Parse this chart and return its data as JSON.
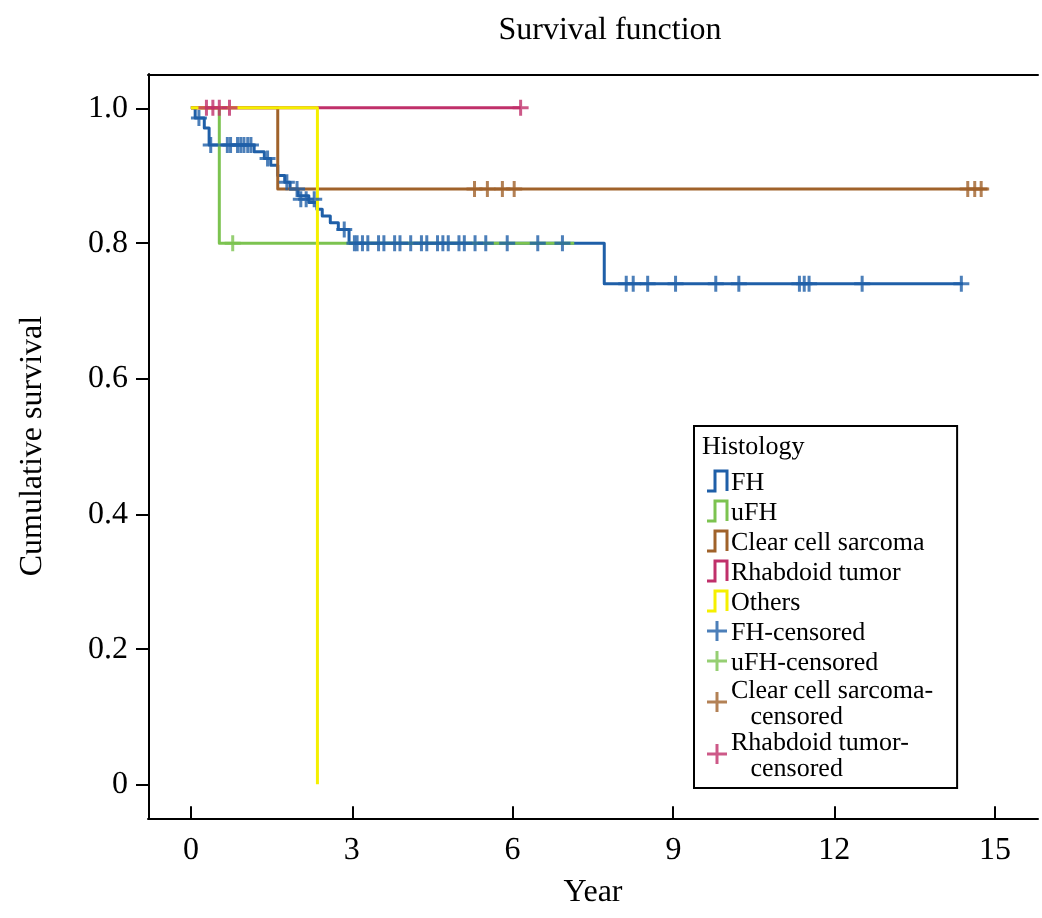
{
  "chart_data": {
    "type": "step",
    "title": "Survival function",
    "xlabel": "Year",
    "ylabel": "Cumulative survival",
    "legend_title": "Histology",
    "legend": "bottom right",
    "grid": false,
    "xlim": [
      -0.8,
      15.8
    ],
    "xticks": [
      0,
      3,
      6,
      9,
      12,
      15
    ],
    "ylim": [
      -0.05,
      1.05
    ],
    "yticks": [
      {
        "value": 0,
        "label": "0"
      },
      {
        "value": 0.2,
        "label": "0.2"
      },
      {
        "value": 0.4,
        "label": "0.4"
      },
      {
        "value": 0.6,
        "label": "0.6"
      },
      {
        "value": 0.8,
        "label": "0.8"
      },
      {
        "value": 1,
        "label": "1.0"
      }
    ],
    "series": [
      {
        "name": "FH",
        "type": "step",
        "color": "#1f5fa8",
        "x": [
          0,
          0.08,
          0.25,
          0.34,
          1.18,
          1.37,
          1.49,
          1.62,
          1.75,
          1.85,
          2.0,
          2.2,
          2.35,
          2.45,
          2.6,
          2.75,
          2.95,
          7.71,
          14.4
        ],
        "values": [
          1,
          0.985,
          0.97,
          0.945,
          0.935,
          0.925,
          0.915,
          0.9,
          0.89,
          0.88,
          0.87,
          0.86,
          0.85,
          0.84,
          0.83,
          0.82,
          0.8,
          0.74,
          0.74
        ]
      },
      {
        "name": "uFH",
        "type": "step",
        "color": "#7cc350",
        "x": [
          0,
          0.53,
          7.15
        ],
        "values": [
          1,
          0.8,
          0.8
        ]
      },
      {
        "name": "Clear cell sarcoma",
        "type": "step",
        "color": "#a0622a",
        "x": [
          0,
          1.62,
          14.86
        ],
        "values": [
          1,
          0.88,
          0.88
        ]
      },
      {
        "name": "Rhabdoid tumor",
        "type": "step",
        "color": "#c0306a",
        "x": [
          0,
          6.15
        ],
        "values": [
          1,
          1
        ]
      },
      {
        "name": "Others",
        "type": "step",
        "color": "#f5f000",
        "x": [
          0,
          2.36,
          2.36
        ],
        "values": [
          1,
          0,
          0
        ]
      },
      {
        "name": "FH-censored",
        "type": "scatter",
        "marker": "cross",
        "color": "#1f5fa8",
        "x": [
          0.15,
          0.37,
          0.68,
          0.74,
          0.87,
          0.93,
          0.99,
          1.06,
          1.12,
          1.43,
          1.79,
          1.98,
          2.05,
          2.15,
          2.3,
          2.86,
          3.05,
          3.1,
          3.2,
          3.3,
          3.5,
          3.6,
          3.8,
          3.9,
          4.1,
          4.3,
          4.4,
          4.6,
          4.7,
          4.8,
          5.0,
          5.1,
          5.3,
          5.5,
          5.9,
          6.47,
          6.93,
          8.12,
          8.25,
          8.52,
          9.04,
          9.79,
          10.22,
          11.35,
          11.44,
          11.53,
          12.52,
          14.37
        ],
        "values": [
          0.985,
          0.945,
          0.945,
          0.945,
          0.945,
          0.945,
          0.945,
          0.945,
          0.945,
          0.925,
          0.89,
          0.88,
          0.865,
          0.865,
          0.865,
          0.82,
          0.8,
          0.8,
          0.8,
          0.8,
          0.8,
          0.8,
          0.8,
          0.8,
          0.8,
          0.8,
          0.8,
          0.8,
          0.8,
          0.8,
          0.8,
          0.8,
          0.8,
          0.8,
          0.8,
          0.8,
          0.8,
          0.74,
          0.74,
          0.74,
          0.74,
          0.74,
          0.74,
          0.74,
          0.74,
          0.74,
          0.74,
          0.74
        ]
      },
      {
        "name": "uFH-censored",
        "type": "scatter",
        "marker": "cross",
        "color": "#7cc350",
        "x": [
          0.78
        ],
        "values": [
          0.8
        ]
      },
      {
        "name": "Clear cell sarcoma-censored",
        "type": "scatter",
        "marker": "cross",
        "color": "#a0622a",
        "x": [
          5.29,
          5.53,
          5.81,
          6.03,
          14.49,
          14.62,
          14.74
        ],
        "values": [
          0.88,
          0.88,
          0.88,
          0.88,
          0.88,
          0.88,
          0.88
        ]
      },
      {
        "name": "Rhabdoid tumor-censored",
        "type": "scatter",
        "marker": "cross",
        "color": "#c0306a",
        "x": [
          0.29,
          0.41,
          0.53,
          0.72,
          6.15
        ],
        "values": [
          1,
          1,
          1,
          1,
          1
        ]
      }
    ]
  }
}
